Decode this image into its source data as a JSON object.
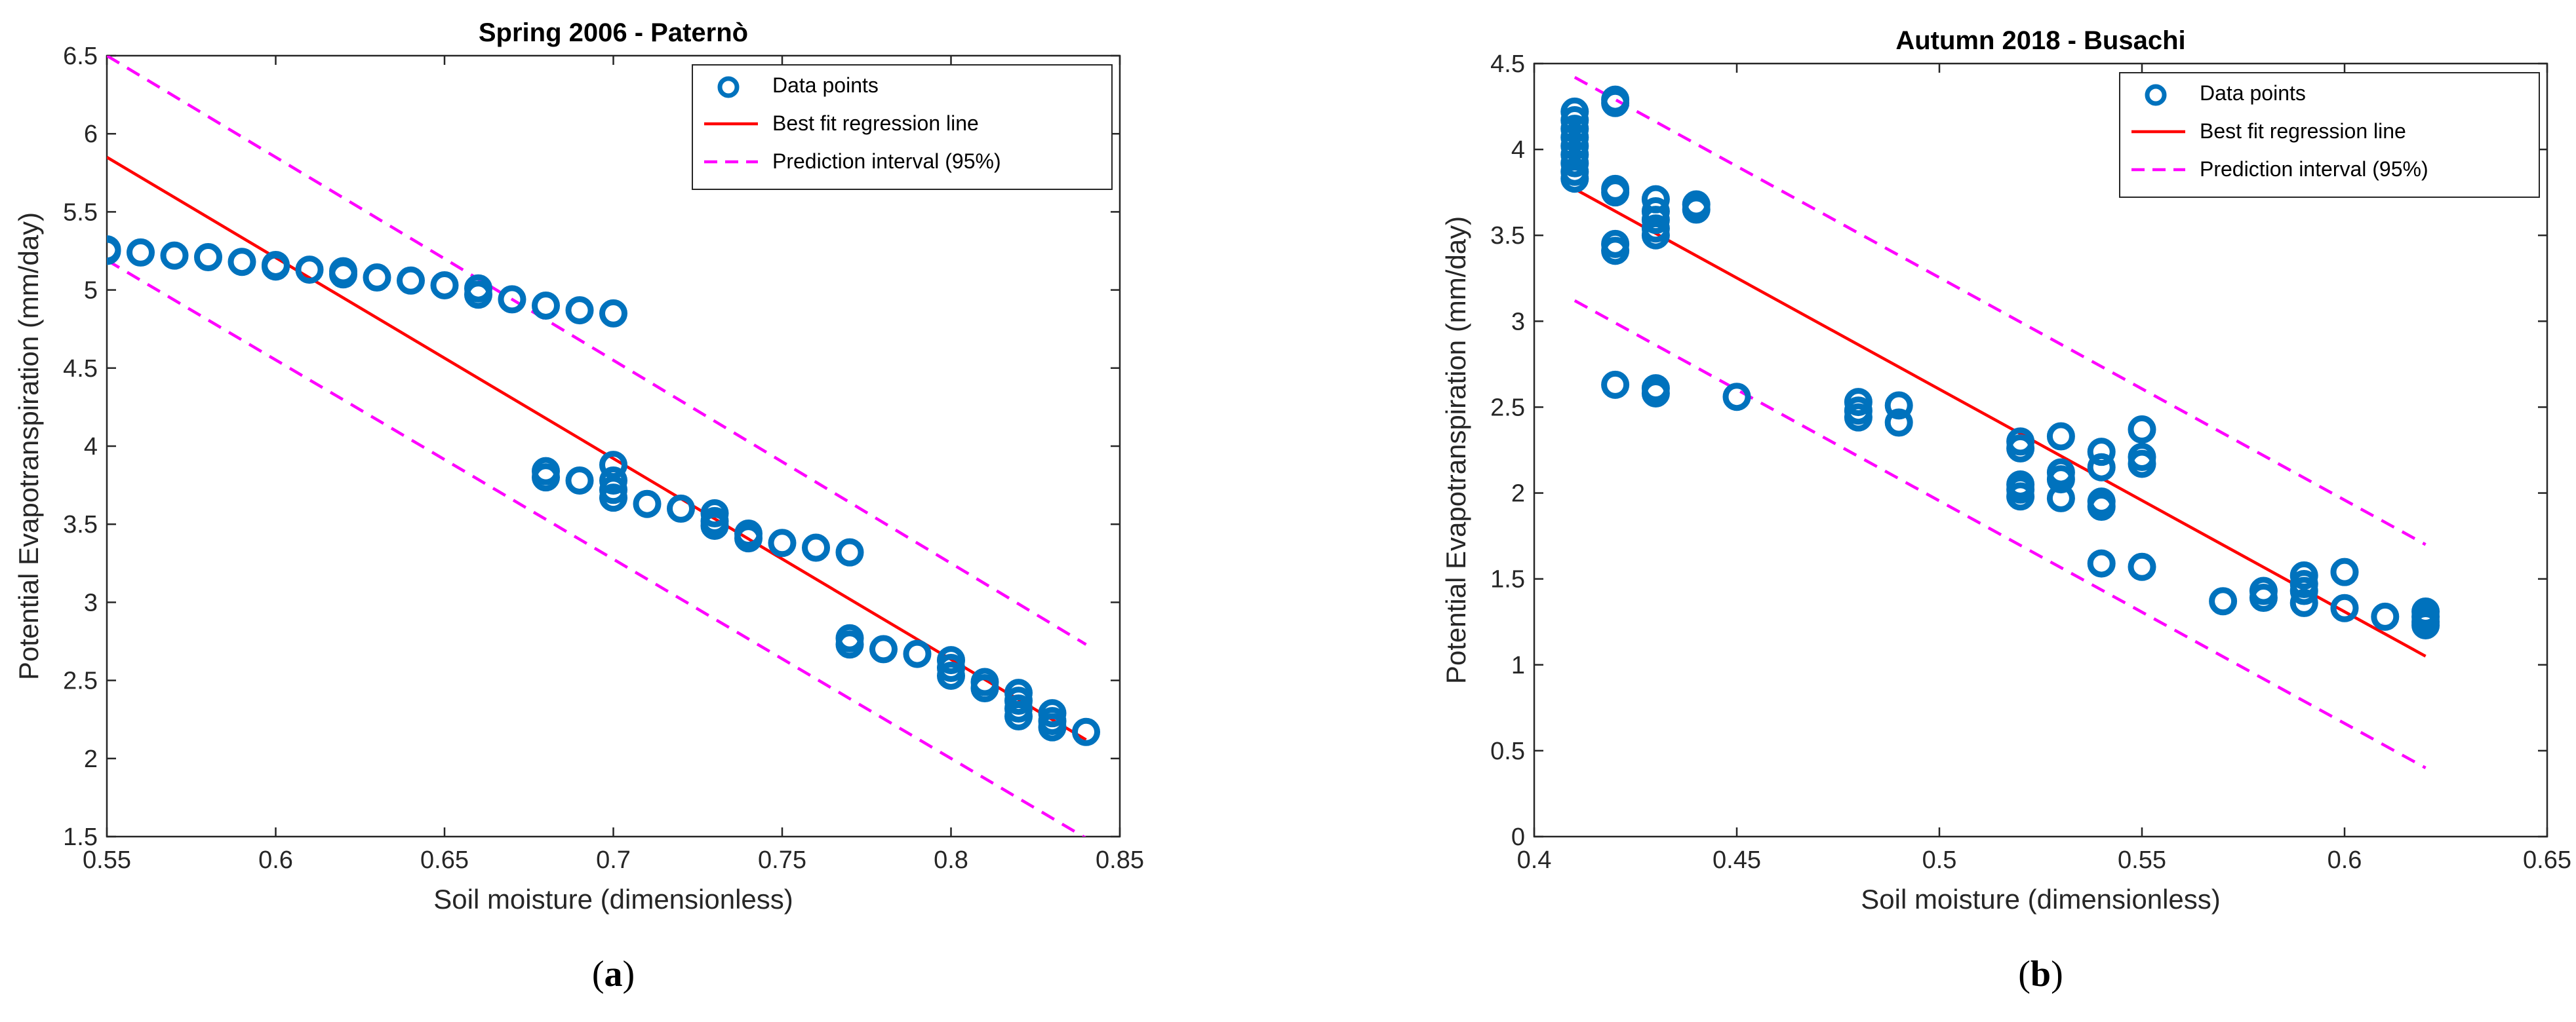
{
  "colors": {
    "points": "#0072BD",
    "fit": "#FF0000",
    "interval": "#FF00FF",
    "axis": "#262626"
  },
  "chart_data": [
    {
      "type": "scatter",
      "title": "Spring 2006 - Paternò",
      "xlabel": "Soil moisture (dimensionless)",
      "ylabel": "Potential Evapotranspiration (mm/day)",
      "xlim": [
        0.55,
        0.85
      ],
      "ylim": [
        1.5,
        6.5
      ],
      "xticks": [
        0.55,
        0.6,
        0.65,
        0.7,
        0.75,
        0.8,
        0.85
      ],
      "xtick_labels": [
        "0.55",
        "0.6",
        "0.65",
        "0.7",
        "0.75",
        "0.8",
        "0.85"
      ],
      "yticks": [
        1.5,
        2,
        2.5,
        3,
        3.5,
        4,
        4.5,
        5,
        5.5,
        6,
        6.5
      ],
      "ytick_labels": [
        "1.5",
        "2",
        "2.5",
        "3",
        "3.5",
        "4",
        "4.5",
        "5",
        "5.5",
        "6",
        "6.5"
      ],
      "legend_position": "top-right",
      "legend": [
        "Data points",
        "Best fit regression line",
        "Prediction interval (95%)"
      ],
      "caption": "a",
      "series": [
        {
          "name": "Data points",
          "type": "scatter",
          "points": [
            [
              0.55,
              5.26
            ],
            [
              0.55,
              5.25
            ],
            [
              0.56,
              5.24
            ],
            [
              0.57,
              5.22
            ],
            [
              0.58,
              5.21
            ],
            [
              0.59,
              5.18
            ],
            [
              0.6,
              5.16
            ],
            [
              0.6,
              5.15
            ],
            [
              0.61,
              5.13
            ],
            [
              0.62,
              5.12
            ],
            [
              0.62,
              5.1
            ],
            [
              0.63,
              5.08
            ],
            [
              0.64,
              5.06
            ],
            [
              0.65,
              5.03
            ],
            [
              0.66,
              5.01
            ],
            [
              0.66,
              4.97
            ],
            [
              0.67,
              4.94
            ],
            [
              0.68,
              4.9
            ],
            [
              0.69,
              4.87
            ],
            [
              0.7,
              4.85
            ],
            [
              0.68,
              3.84
            ],
            [
              0.68,
              3.8
            ],
            [
              0.69,
              3.78
            ],
            [
              0.7,
              3.88
            ],
            [
              0.7,
              3.78
            ],
            [
              0.7,
              3.72
            ],
            [
              0.7,
              3.67
            ],
            [
              0.71,
              3.63
            ],
            [
              0.72,
              3.6
            ],
            [
              0.73,
              3.57
            ],
            [
              0.73,
              3.52
            ],
            [
              0.73,
              3.49
            ],
            [
              0.74,
              3.44
            ],
            [
              0.74,
              3.41
            ],
            [
              0.75,
              3.38
            ],
            [
              0.76,
              3.35
            ],
            [
              0.77,
              3.32
            ],
            [
              0.77,
              2.77
            ],
            [
              0.77,
              2.73
            ],
            [
              0.78,
              2.7
            ],
            [
              0.79,
              2.67
            ],
            [
              0.8,
              2.63
            ],
            [
              0.8,
              2.58
            ],
            [
              0.8,
              2.53
            ],
            [
              0.81,
              2.49
            ],
            [
              0.81,
              2.45
            ],
            [
              0.82,
              2.42
            ],
            [
              0.82,
              2.37
            ],
            [
              0.82,
              2.32
            ],
            [
              0.82,
              2.27
            ],
            [
              0.83,
              2.29
            ],
            [
              0.83,
              2.24
            ],
            [
              0.83,
              2.2
            ],
            [
              0.84,
              2.17
            ]
          ]
        },
        {
          "name": "Best fit regression line",
          "type": "line",
          "x": [
            0.55,
            0.84
          ],
          "y": [
            5.85,
            2.12
          ]
        },
        {
          "name": "Prediction interval (95%)",
          "type": "dashed",
          "x": [
            0.55,
            0.84
          ],
          "y": [
            6.5,
            2.73
          ]
        },
        {
          "name": "Prediction interval (95%) lower",
          "type": "dashed",
          "x": [
            0.55,
            0.84
          ],
          "y": [
            5.19,
            1.49
          ]
        }
      ]
    },
    {
      "type": "scatter",
      "title": "Autumn 2018 - Busachi",
      "xlabel": "Soil moisture (dimensionless)",
      "ylabel": "Potential Evapotranspiration (mm/day)",
      "xlim": [
        0.4,
        0.65
      ],
      "ylim": [
        0,
        4.5
      ],
      "xticks": [
        0.4,
        0.45,
        0.5,
        0.55,
        0.6,
        0.65
      ],
      "xtick_labels": [
        "0.4",
        "0.45",
        "0.5",
        "0.55",
        "0.6",
        "0.65"
      ],
      "yticks": [
        0,
        0.5,
        1,
        1.5,
        2,
        2.5,
        3,
        3.5,
        4,
        4.5
      ],
      "ytick_labels": [
        "0",
        "0.5",
        "1",
        "1.5",
        "2",
        "2.5",
        "3",
        "3.5",
        "4",
        "4.5"
      ],
      "legend_position": "top-right",
      "legend": [
        "Data points",
        "Best fit regression line",
        "Prediction interval (95%)"
      ],
      "caption": "b",
      "series": [
        {
          "name": "Data points",
          "type": "scatter",
          "points": [
            [
              0.41,
              4.22
            ],
            [
              0.41,
              4.17
            ],
            [
              0.41,
              4.12
            ],
            [
              0.41,
              4.07
            ],
            [
              0.41,
              4.02
            ],
            [
              0.41,
              3.97
            ],
            [
              0.41,
              3.92
            ],
            [
              0.41,
              3.87
            ],
            [
              0.41,
              3.83
            ],
            [
              0.42,
              4.29
            ],
            [
              0.42,
              4.27
            ],
            [
              0.42,
              3.77
            ],
            [
              0.42,
              3.75
            ],
            [
              0.42,
              3.45
            ],
            [
              0.42,
              3.41
            ],
            [
              0.42,
              2.63
            ],
            [
              0.43,
              3.71
            ],
            [
              0.43,
              3.64
            ],
            [
              0.43,
              3.59
            ],
            [
              0.43,
              3.54
            ],
            [
              0.43,
              3.5
            ],
            [
              0.43,
              2.61
            ],
            [
              0.43,
              2.58
            ],
            [
              0.44,
              3.68
            ],
            [
              0.44,
              3.65
            ],
            [
              0.45,
              2.56
            ],
            [
              0.48,
              2.53
            ],
            [
              0.48,
              2.48
            ],
            [
              0.48,
              2.44
            ],
            [
              0.49,
              2.51
            ],
            [
              0.49,
              2.41
            ],
            [
              0.52,
              2.3
            ],
            [
              0.52,
              2.26
            ],
            [
              0.52,
              2.05
            ],
            [
              0.52,
              2.02
            ],
            [
              0.52,
              1.98
            ],
            [
              0.53,
              2.33
            ],
            [
              0.53,
              2.12
            ],
            [
              0.53,
              2.08
            ],
            [
              0.53,
              1.97
            ],
            [
              0.54,
              2.24
            ],
            [
              0.54,
              2.15
            ],
            [
              0.54,
              1.95
            ],
            [
              0.54,
              1.92
            ],
            [
              0.54,
              1.59
            ],
            [
              0.55,
              2.37
            ],
            [
              0.55,
              2.21
            ],
            [
              0.55,
              2.17
            ],
            [
              0.55,
              1.57
            ],
            [
              0.57,
              1.37
            ],
            [
              0.58,
              1.43
            ],
            [
              0.58,
              1.39
            ],
            [
              0.59,
              1.52
            ],
            [
              0.59,
              1.47
            ],
            [
              0.59,
              1.43
            ],
            [
              0.59,
              1.36
            ],
            [
              0.6,
              1.54
            ],
            [
              0.6,
              1.33
            ],
            [
              0.61,
              1.28
            ],
            [
              0.62,
              1.31
            ],
            [
              0.62,
              1.28
            ],
            [
              0.62,
              1.25
            ],
            [
              0.62,
              1.23
            ]
          ]
        },
        {
          "name": "Best fit regression line",
          "type": "line",
          "x": [
            0.41,
            0.62
          ],
          "y": [
            3.77,
            1.05
          ]
        },
        {
          "name": "Prediction interval (95%)",
          "type": "dashed",
          "x": [
            0.41,
            0.62
          ],
          "y": [
            4.42,
            1.7
          ]
        },
        {
          "name": "Prediction interval (95%) lower",
          "type": "dashed",
          "x": [
            0.41,
            0.62
          ],
          "y": [
            3.12,
            0.4
          ]
        }
      ]
    }
  ]
}
